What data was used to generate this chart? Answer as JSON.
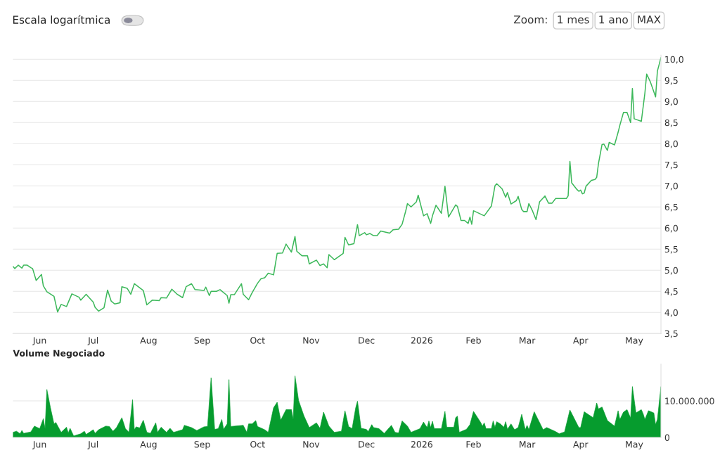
{
  "chart_data": [
    {
      "type": "line",
      "annotations": [
        "Escala logarítmica",
        "Zoom:",
        "1 mes",
        "1 ano",
        "MAX"
      ],
      "x": [
        "2025-06-01",
        "2025-06-02",
        "2025-06-04",
        "2025-06-06",
        "2025-06-07",
        "2025-06-09",
        "2025-06-11",
        "2025-06-12",
        "2025-06-14",
        "2025-06-17",
        "2025-06-18",
        "2025-06-20",
        "2025-06-24",
        "2025-06-26",
        "2025-06-28",
        "2025-07-01",
        "2025-07-04",
        "2025-07-08",
        "2025-07-09",
        "2025-07-12",
        "2025-07-16",
        "2025-07-17",
        "2025-07-19",
        "2025-07-22",
        "2025-07-24",
        "2025-07-26",
        "2025-07-28",
        "2025-07-31",
        "2025-08-01",
        "2025-08-04",
        "2025-08-06",
        "2025-08-08",
        "2025-08-13",
        "2025-08-15",
        "2025-08-18",
        "2025-08-22",
        "2025-08-23",
        "2025-08-26",
        "2025-08-29",
        "2025-09-01",
        "2025-09-04",
        "2025-09-06",
        "2025-09-09",
        "2025-09-11",
        "2025-09-16",
        "2025-09-17",
        "2025-09-19",
        "2025-09-20",
        "2025-09-23",
        "2025-09-25",
        "2025-09-29",
        "2025-09-30",
        "2025-10-01",
        "2025-10-03",
        "2025-10-07",
        "2025-10-08",
        "2025-10-11",
        "2025-10-13",
        "2025-10-16",
        "2025-10-18",
        "2025-10-20",
        "2025-10-22",
        "2025-10-25",
        "2025-10-27",
        "2025-10-30",
        "2025-11-01",
        "2025-11-04",
        "2025-11-06",
        "2025-11-07",
        "2025-11-10",
        "2025-11-13",
        "2025-11-14",
        "2025-11-18",
        "2025-11-20",
        "2025-11-22",
        "2025-11-24",
        "2025-11-25",
        "2025-11-28",
        "2025-12-03",
        "2025-12-04",
        "2025-12-06",
        "2025-12-09",
        "2025-12-11",
        "2025-12-12",
        "2025-12-15",
        "2025-12-16",
        "2025-12-18",
        "2025-12-20",
        "2025-12-22",
        "2025-12-24",
        "2025-12-29",
        "2025-12-31",
        "2026-01-03",
        "2026-01-05",
        "2026-01-07",
        "2026-01-08",
        "2026-01-10",
        "2026-01-13",
        "2026-01-14",
        "2026-01-17",
        "2026-01-19",
        "2026-01-21",
        "2026-01-22",
        "2026-01-24",
        "2026-01-27",
        "2026-01-29",
        "2026-01-31",
        "2026-02-04",
        "2026-02-05",
        "2026-02-07",
        "2026-02-09",
        "2026-02-11",
        "2026-02-12",
        "2026-02-13",
        "2026-02-14",
        "2026-02-20",
        "2026-02-24",
        "2026-02-26",
        "2026-02-27",
        "2026-03-02",
        "2026-03-04",
        "2026-03-05",
        "2026-03-07",
        "2026-03-10",
        "2026-03-11",
        "2026-03-13",
        "2026-03-14",
        "2026-03-16",
        "2026-03-17",
        "2026-03-19",
        "2026-03-21",
        "2026-03-23",
        "2026-03-26",
        "2026-03-28",
        "2026-03-30",
        "2026-04-01",
        "2026-04-07",
        "2026-04-08",
        "2026-04-09",
        "2026-04-10",
        "2026-04-13",
        "2026-04-14",
        "2026-04-15",
        "2026-04-16",
        "2026-04-17",
        "2026-04-18",
        "2026-04-21",
        "2026-04-23",
        "2026-04-24",
        "2026-04-25",
        "2026-04-27",
        "2026-04-28",
        "2026-04-30",
        "2026-05-01",
        "2026-05-04",
        "2026-05-06",
        "2026-05-07",
        "2026-05-09",
        "2026-05-11",
        "2026-05-13",
        "2026-05-14",
        "2026-05-15",
        "2026-05-19",
        "2026-05-21",
        "2026-05-22",
        "2026-05-24",
        "2026-05-25",
        "2026-05-27",
        "2026-05-28",
        "2026-05-30"
      ],
      "series": [
        {
          "color": "#3cb85a",
          "values": [
            5.09,
            5.04,
            5.12,
            5.05,
            5.12,
            5.12,
            5.06,
            5.04,
            4.76,
            4.9,
            4.63,
            4.49,
            4.38,
            4.01,
            4.19,
            4.14,
            4.44,
            4.36,
            4.29,
            4.43,
            4.24,
            4.12,
            4.03,
            4.11,
            4.53,
            4.27,
            4.2,
            4.23,
            4.61,
            4.57,
            4.43,
            4.68,
            4.52,
            4.18,
            4.29,
            4.28,
            4.35,
            4.34,
            4.55,
            4.43,
            4.35,
            4.61,
            4.68,
            4.54,
            4.52,
            4.6,
            4.4,
            4.5,
            4.5,
            4.54,
            4.4,
            4.22,
            4.42,
            4.42,
            4.68,
            4.43,
            4.3,
            4.47,
            4.69,
            4.8,
            4.82,
            4.93,
            4.89,
            5.4,
            5.41,
            5.62,
            5.43,
            5.8,
            5.45,
            5.34,
            5.34,
            5.15,
            5.24,
            5.11,
            5.15,
            5.06,
            5.37,
            5.25,
            5.4,
            5.78,
            5.6,
            5.63,
            6.08,
            5.82,
            5.89,
            5.84,
            5.87,
            5.82,
            5.82,
            5.93,
            5.88,
            5.96,
            5.97,
            6.09,
            6.4,
            6.58,
            6.5,
            6.62,
            6.78,
            6.29,
            6.34,
            6.11,
            6.29,
            6.54,
            6.35,
            6.99,
            6.26,
            6.55,
            6.51,
            6.18,
            6.18,
            6.11,
            6.26,
            6.09,
            6.41,
            6.29,
            6.52,
            7.0,
            7.05,
            6.93,
            6.73,
            6.84,
            6.57,
            6.65,
            6.75,
            6.44,
            6.39,
            6.39,
            6.58,
            6.41,
            6.2,
            6.62,
            6.76,
            6.59,
            6.59,
            6.7,
            6.7,
            6.76,
            7.58,
            7.07,
            6.91,
            6.87,
            6.9,
            6.81,
            6.83,
            6.99,
            7.13,
            7.15,
            7.2,
            7.53,
            7.98,
            7.99,
            7.84,
            8.03,
            7.97,
            8.27,
            8.44,
            8.74,
            8.74,
            8.5,
            9.31,
            8.59,
            8.53,
            9.2,
            9.65,
            9.47,
            9.35,
            9.11,
            9.72,
            10.04
          ]
        }
      ],
      "xlim": [
        "2025-06-01",
        "2026-05-30"
      ],
      "ylim": [
        3.5,
        10.1
      ],
      "xticks": [
        {
          "value": "2025-06-16",
          "label": "Jun"
        },
        {
          "value": "2025-07-16",
          "label": "Jul"
        },
        {
          "value": "2025-08-16",
          "label": "Aug"
        },
        {
          "value": "2025-09-15",
          "label": "Sep"
        },
        {
          "value": "2025-10-16",
          "label": "Oct"
        },
        {
          "value": "2025-11-15",
          "label": "Nov"
        },
        {
          "value": "2025-12-16",
          "label": "Dec"
        },
        {
          "value": "2026-01-16",
          "label": "2026"
        },
        {
          "value": "2026-02-14",
          "label": "Feb"
        },
        {
          "value": "2026-03-16",
          "label": "Mar"
        },
        {
          "value": "2026-04-15",
          "label": "Apr"
        },
        {
          "value": "2026-05-15",
          "label": "May"
        }
      ],
      "yticks": [
        {
          "value": 3.5,
          "label": "3,5"
        },
        {
          "value": 4.0,
          "label": "4,0"
        },
        {
          "value": 4.5,
          "label": "4,5"
        },
        {
          "value": 5.0,
          "label": "5,0"
        },
        {
          "value": 5.5,
          "label": "5,5"
        },
        {
          "value": 6.0,
          "label": "6,0"
        },
        {
          "value": 6.5,
          "label": "6,5"
        },
        {
          "value": 7.0,
          "label": "7,0"
        },
        {
          "value": 7.5,
          "label": "7,5"
        },
        {
          "value": 8.0,
          "label": "8,0"
        },
        {
          "value": 8.5,
          "label": "8,5"
        },
        {
          "value": 9.0,
          "label": "9,0"
        },
        {
          "value": 9.5,
          "label": "9,5"
        },
        {
          "value": 10.0,
          "label": "10,0"
        }
      ],
      "grid": "y"
    },
    {
      "type": "area",
      "title": "Volume Negociado",
      "x": [
        "2025-06-01",
        "2025-06-03",
        "2025-06-05",
        "2025-06-06",
        "2025-06-07",
        "2025-06-11",
        "2025-06-13",
        "2025-06-16",
        "2025-06-18",
        "2025-06-19",
        "2025-06-20",
        "2025-06-22",
        "2025-06-24",
        "2025-06-25",
        "2025-06-28",
        "2025-07-01",
        "2025-07-02",
        "2025-07-03",
        "2025-07-05",
        "2025-07-09",
        "2025-07-11",
        "2025-07-12",
        "2025-07-16",
        "2025-07-17",
        "2025-07-19",
        "2025-07-23",
        "2025-07-25",
        "2025-07-27",
        "2025-07-29",
        "2025-08-01",
        "2025-08-03",
        "2025-08-05",
        "2025-08-07",
        "2025-08-08",
        "2025-08-09",
        "2025-08-11",
        "2025-08-13",
        "2025-08-15",
        "2025-08-17",
        "2025-08-20",
        "2025-08-21",
        "2025-08-23",
        "2025-08-26",
        "2025-08-28",
        "2025-08-30",
        "2025-09-04",
        "2025-09-05",
        "2025-09-09",
        "2025-09-12",
        "2025-09-16",
        "2025-09-18",
        "2025-09-20",
        "2025-09-22",
        "2025-09-24",
        "2025-09-26",
        "2025-09-27",
        "2025-09-29",
        "2025-09-30",
        "2025-10-01",
        "2025-10-08",
        "2025-10-10",
        "2025-10-11",
        "2025-10-13",
        "2025-10-15",
        "2025-10-16",
        "2025-10-20",
        "2025-10-22",
        "2025-10-25",
        "2025-10-27",
        "2025-10-29",
        "2025-11-01",
        "2025-11-04",
        "2025-11-05",
        "2025-11-06",
        "2025-11-08",
        "2025-11-11",
        "2025-11-14",
        "2025-11-18",
        "2025-11-20",
        "2025-11-22",
        "2025-11-25",
        "2025-11-28",
        "2025-12-02",
        "2025-12-04",
        "2025-12-06",
        "2025-12-08",
        "2025-12-10",
        "2025-12-11",
        "2025-12-13",
        "2025-12-16",
        "2025-12-17",
        "2025-12-19",
        "2025-12-20",
        "2025-12-23",
        "2025-12-26",
        "2025-12-30",
        "2026-01-01",
        "2026-01-03",
        "2026-01-05",
        "2026-01-08",
        "2026-01-10",
        "2026-01-15",
        "2026-01-17",
        "2026-01-19",
        "2026-01-20",
        "2026-01-21",
        "2026-01-22",
        "2026-01-23",
        "2026-01-27",
        "2026-01-29",
        "2026-01-30",
        "2026-02-03",
        "2026-02-04",
        "2026-02-05",
        "2026-02-06",
        "2026-02-10",
        "2026-02-12",
        "2026-02-14",
        "2026-02-18",
        "2026-02-19",
        "2026-02-20",
        "2026-02-21",
        "2026-02-24",
        "2026-02-25",
        "2026-02-26",
        "2026-02-27",
        "2026-03-01",
        "2026-03-03",
        "2026-03-04",
        "2026-03-05",
        "2026-03-07",
        "2026-03-09",
        "2026-03-11",
        "2026-03-13",
        "2026-03-15",
        "2026-03-16",
        "2026-03-17",
        "2026-03-20",
        "2026-03-24",
        "2026-03-25",
        "2026-03-27",
        "2026-04-01",
        "2026-04-03",
        "2026-04-06",
        "2026-04-09",
        "2026-04-14",
        "2026-04-15",
        "2026-04-17",
        "2026-04-22",
        "2026-04-24",
        "2026-04-25",
        "2026-04-27",
        "2026-04-30",
        "2026-05-04",
        "2026-05-06",
        "2026-05-07",
        "2026-05-09",
        "2026-05-11",
        "2026-05-13",
        "2026-05-14",
        "2026-05-16",
        "2026-05-19",
        "2026-05-20",
        "2026-05-21",
        "2026-05-23",
        "2026-05-26",
        "2026-05-27",
        "2026-05-28",
        "2026-05-30"
      ],
      "series": [
        {
          "color": "#069c2e",
          "values": [
            1400000,
            1700000,
            1000000,
            1900000,
            1100000,
            1500000,
            3100000,
            2400000,
            5100000,
            2400000,
            13100000,
            8100000,
            3700000,
            4100000,
            1400000,
            2800000,
            1200000,
            2500000,
            400000,
            1000000,
            1700000,
            800000,
            2100000,
            1100000,
            2100000,
            3100000,
            3000000,
            1700000,
            2700000,
            5400000,
            2400000,
            1400000,
            10300000,
            2100000,
            2900000,
            2600000,
            4700000,
            1400000,
            1100000,
            4000000,
            1400000,
            2800000,
            1400000,
            2500000,
            1400000,
            2100000,
            3300000,
            2700000,
            1900000,
            2900000,
            3000000,
            16300000,
            2200000,
            2400000,
            4900000,
            2200000,
            3700000,
            15800000,
            3000000,
            3300000,
            1400000,
            3700000,
            3700000,
            4600000,
            3000000,
            2100000,
            1400000,
            8100000,
            9600000,
            4700000,
            7600000,
            7600000,
            4900000,
            16800000,
            10100000,
            5900000,
            2700000,
            4000000,
            2500000,
            6900000,
            3100000,
            1400000,
            1700000,
            7300000,
            3000000,
            2400000,
            8100000,
            9900000,
            2500000,
            2200000,
            1600000,
            3500000,
            2700000,
            2400000,
            1100000,
            3300000,
            1400000,
            1200000,
            4500000,
            3100000,
            1400000,
            2400000,
            4200000,
            2700000,
            4500000,
            2700000,
            4400000,
            2400000,
            2400000,
            7100000,
            2800000,
            2800000,
            5400000,
            5800000,
            1400000,
            2200000,
            3500000,
            7100000,
            4100000,
            3100000,
            4000000,
            2400000,
            2400000,
            4500000,
            2800000,
            4300000,
            3700000,
            2800000,
            4300000,
            2200000,
            3700000,
            2100000,
            2700000,
            6300000,
            2100000,
            3300000,
            2100000,
            7000000,
            3100000,
            2100000,
            2700000,
            1600000,
            1000000,
            1500000,
            7500000,
            2700000,
            2700000,
            7000000,
            5400000,
            9400000,
            7800000,
            8300000,
            4600000,
            3100000,
            7300000,
            4900000,
            6900000,
            7600000,
            5300000,
            13900000,
            6700000,
            7600000,
            6500000,
            4900000,
            7300000,
            6700000,
            3500000,
            4900000,
            13900000
          ]
        }
      ],
      "xlim": [
        "2025-06-01",
        "2026-05-30"
      ],
      "ylim": [
        0,
        20000000
      ],
      "xticks": [
        {
          "value": "2025-06-16",
          "label": "Jun"
        },
        {
          "value": "2025-07-16",
          "label": "Jul"
        },
        {
          "value": "2025-08-16",
          "label": "Aug"
        },
        {
          "value": "2025-09-15",
          "label": "Sep"
        },
        {
          "value": "2025-10-16",
          "label": "Oct"
        },
        {
          "value": "2025-11-15",
          "label": "Nov"
        },
        {
          "value": "2025-12-16",
          "label": "Dec"
        },
        {
          "value": "2026-01-16",
          "label": "2026"
        },
        {
          "value": "2026-02-14",
          "label": "Feb"
        },
        {
          "value": "2026-03-16",
          "label": "Mar"
        },
        {
          "value": "2026-04-15",
          "label": "Apr"
        },
        {
          "value": "2026-05-15",
          "label": "May"
        }
      ],
      "yticks": [
        0,
        {
          "value": 10000000,
          "label": "10.000.000"
        }
      ],
      "grid": "y"
    }
  ]
}
